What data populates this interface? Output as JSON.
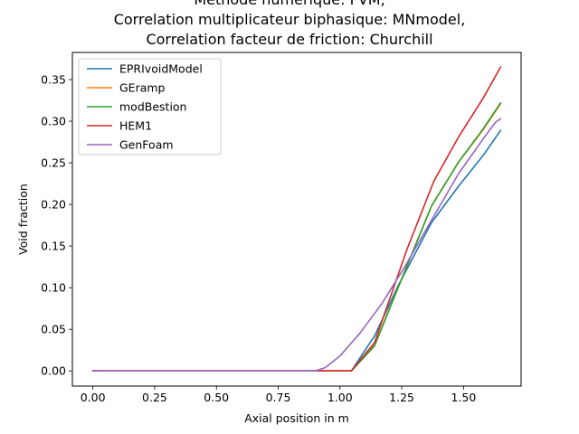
{
  "chart_data": {
    "type": "line",
    "title_lines": [
      "Methode numerique: FVM,",
      "Correlation multiplicateur biphasique: MNmodel,",
      "Correlation facteur de friction: Churchill"
    ],
    "xlabel": "Axial position in m",
    "ylabel": "Void fraction",
    "xlim": [
      -0.083,
      1.733
    ],
    "ylim": [
      -0.0182,
      0.3826
    ],
    "x_ticks": [
      0.0,
      0.25,
      0.5,
      0.75,
      1.0,
      1.25,
      1.5
    ],
    "x_tick_labels": [
      "0.00",
      "0.25",
      "0.50",
      "0.75",
      "1.00",
      "1.25",
      "1.50"
    ],
    "y_ticks": [
      0.0,
      0.05,
      0.1,
      0.15,
      0.2,
      0.25,
      0.3,
      0.35
    ],
    "y_tick_labels": [
      "0.00",
      "0.05",
      "0.10",
      "0.15",
      "0.20",
      "0.25",
      "0.30",
      "0.35"
    ],
    "grid": false,
    "legend_position": "top-left",
    "series": [
      {
        "name": "EPRIvoidModel",
        "color": "#1f77b4",
        "x": [
          0.0,
          0.95,
          1.046,
          1.14,
          1.24,
          1.37,
          1.48,
          1.58,
          1.65
        ],
        "y": [
          0.0,
          0.0,
          0.0,
          0.042,
          0.105,
          0.178,
          0.222,
          0.259,
          0.289
        ]
      },
      {
        "name": "GEramp",
        "color": "#ff7f0e",
        "x": [
          0.0,
          0.95,
          1.046,
          1.14,
          1.26,
          1.37,
          1.48,
          1.58,
          1.65
        ],
        "y": [
          0.0,
          0.0,
          0.0,
          0.031,
          0.118,
          0.198,
          0.251,
          0.29,
          0.321
        ]
      },
      {
        "name": "modBestion",
        "color": "#2ca02c",
        "x": [
          0.0,
          0.95,
          1.046,
          1.14,
          1.26,
          1.37,
          1.48,
          1.58,
          1.65
        ],
        "y": [
          0.0,
          0.0,
          0.0,
          0.03,
          0.118,
          0.198,
          0.251,
          0.291,
          0.322
        ]
      },
      {
        "name": "HEM1",
        "color": "#d62728",
        "x": [
          0.0,
          0.95,
          1.046,
          1.14,
          1.27,
          1.38,
          1.48,
          1.58,
          1.65
        ],
        "y": [
          0.0,
          0.0,
          0.0,
          0.034,
          0.145,
          0.228,
          0.281,
          0.328,
          0.365
        ]
      },
      {
        "name": "GenFoam",
        "color": "#9467bd",
        "x": [
          0.0,
          0.9,
          0.94,
          1.0,
          1.08,
          1.17,
          1.26,
          1.37,
          1.48,
          1.58,
          1.63,
          1.65
        ],
        "y": [
          0.0,
          0.0,
          0.004,
          0.018,
          0.045,
          0.081,
          0.124,
          0.181,
          0.237,
          0.279,
          0.299,
          0.303
        ]
      }
    ]
  }
}
